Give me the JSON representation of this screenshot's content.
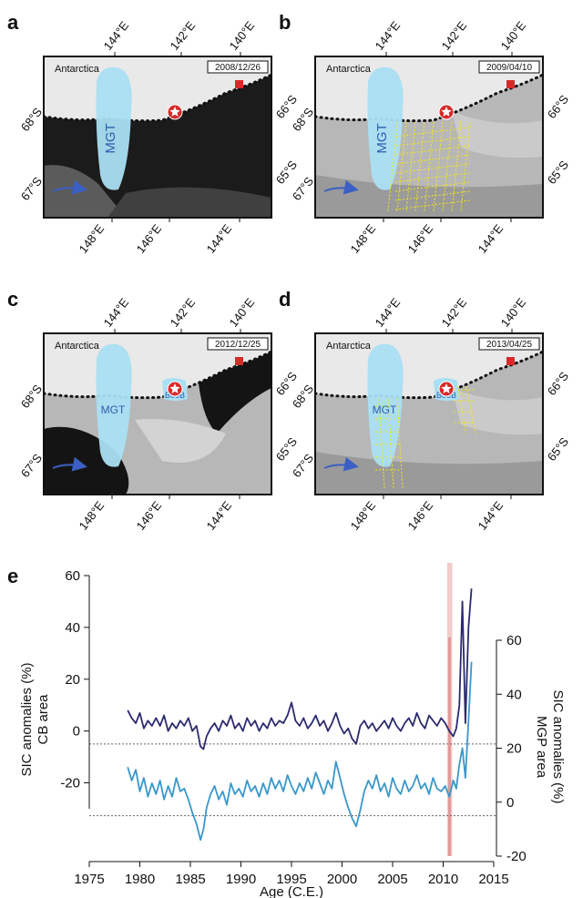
{
  "panels": [
    {
      "letter": "a",
      "date": "2008/12/26",
      "place": "Antarctica",
      "mgt": "MGT",
      "b09b": "",
      "sea": "open",
      "yellow": false,
      "top_lons": [
        "144°E",
        "142°E",
        "140°E"
      ],
      "bottom_lons": [
        "148°E",
        "146°E",
        "144°E"
      ],
      "left_lats": [
        "68°S",
        "67°S"
      ],
      "right_lats": [
        "66°S",
        "65°S"
      ]
    },
    {
      "letter": "b",
      "date": "2009/04/10",
      "place": "Antarctica",
      "mgt": "MGT",
      "b09b": "",
      "sea": "ice",
      "yellow": true,
      "top_lons": [
        "144°E",
        "142°E",
        "140°E"
      ],
      "bottom_lons": [
        "148°E",
        "146°E",
        "144°E"
      ],
      "left_lats": [
        "68°S",
        "67°S"
      ],
      "right_lats": [
        "66°S",
        "65°S"
      ]
    },
    {
      "letter": "c",
      "date": "2012/12/25",
      "place": "Antarctica",
      "mgt": "MGT",
      "b09b": "B09B",
      "sea": "mixed",
      "yellow": false,
      "top_lons": [
        "144°E",
        "142°E",
        "140°E"
      ],
      "bottom_lons": [
        "148°E",
        "146°E",
        "144°E"
      ],
      "left_lats": [
        "68°S",
        "67°S"
      ],
      "right_lats": [
        "66°S",
        "65°S"
      ]
    },
    {
      "letter": "d",
      "date": "2013/04/25",
      "place": "Antarctica",
      "mgt": "MGT",
      "b09b": "B09B",
      "sea": "ice",
      "yellow": true,
      "top_lons": [
        "144°E",
        "142°E",
        "140°E"
      ],
      "bottom_lons": [
        "148°E",
        "146°E",
        "144°E"
      ],
      "left_lats": [
        "68°S",
        "67°S"
      ],
      "right_lats": [
        "66°S",
        "65°S"
      ]
    }
  ],
  "chart_data": {
    "type": "line",
    "panel_label": "e",
    "xlabel": "Age (C.E.)",
    "xlim": [
      1975,
      2015
    ],
    "x_ticks": [
      "1975",
      "1980",
      "1985",
      "1990",
      "1995",
      "2000",
      "2005",
      "2010",
      "2015"
    ],
    "left_axis": {
      "label_line1": "SIC anomalies (%)",
      "label_line2": "CB area",
      "ylim": [
        -35,
        62
      ],
      "ticks": [
        "60",
        "40",
        "20",
        "0",
        "-20"
      ]
    },
    "right_axis": {
      "label_line1": "SIC anomalies (%)",
      "label_line2": "MGP area",
      "ylim": [
        -22,
        72
      ],
      "ticks": [
        "60",
        "40",
        "20",
        "0",
        "-20"
      ]
    },
    "shaded_interval": [
      2010.4,
      2010.9
    ],
    "reference_lines": {
      "left_axis_y": -5,
      "right_axis_y": -5
    },
    "series": [
      {
        "axis": "left",
        "color": "#2a2a6e",
        "x": [
          1978.8,
          1979.2,
          1979.6,
          1980,
          1980.4,
          1980.8,
          1981.2,
          1981.6,
          1982,
          1982.4,
          1982.8,
          1983.2,
          1983.6,
          1984,
          1984.4,
          1984.8,
          1985.2,
          1985.6,
          1986,
          1986.3,
          1986.6,
          1987,
          1987.4,
          1987.8,
          1988.2,
          1988.6,
          1989,
          1989.4,
          1989.8,
          1990.2,
          1990.6,
          1991,
          1991.4,
          1991.8,
          1992.2,
          1992.6,
          1993,
          1993.4,
          1993.8,
          1994.2,
          1994.6,
          1995,
          1995.4,
          1995.8,
          1996.2,
          1996.6,
          1997,
          1997.4,
          1997.8,
          1998.2,
          1998.6,
          1999,
          1999.4,
          1999.8,
          2000.2,
          2000.6,
          2001,
          2001.4,
          2001.8,
          2002.2,
          2002.6,
          2003,
          2003.4,
          2003.8,
          2004.2,
          2004.6,
          2005,
          2005.4,
          2005.8,
          2006.2,
          2006.6,
          2007,
          2007.4,
          2007.8,
          2008.2,
          2008.6,
          2009,
          2009.4,
          2009.8,
          2010.2,
          2010.6,
          2011,
          2011.3,
          2011.6,
          2011.9,
          2012.2,
          2012.5,
          2012.8
        ],
        "y": [
          8,
          5,
          3,
          7,
          1,
          4,
          2,
          5,
          2,
          6,
          0,
          3,
          1,
          4,
          2,
          5,
          0,
          2,
          -6,
          -7,
          -2,
          1,
          3,
          0,
          4,
          2,
          6,
          1,
          3,
          0,
          5,
          2,
          4,
          0,
          3,
          1,
          5,
          2,
          4,
          3,
          6,
          11,
          4,
          2,
          5,
          1,
          3,
          6,
          2,
          4,
          0,
          3,
          7,
          2,
          -1,
          1,
          -3,
          -5,
          2,
          4,
          1,
          3,
          0,
          2,
          4,
          1,
          5,
          2,
          0,
          3,
          5,
          2,
          7,
          3,
          1,
          6,
          4,
          2,
          5,
          3,
          0,
          -2,
          1,
          10,
          50,
          3,
          40,
          55
        ]
      },
      {
        "axis": "right",
        "color": "#3a97c9",
        "x": [
          1978.8,
          1979.2,
          1979.6,
          1980,
          1980.4,
          1980.8,
          1981.2,
          1981.6,
          1982,
          1982.4,
          1982.8,
          1983.2,
          1983.6,
          1984,
          1984.4,
          1984.8,
          1985.2,
          1985.6,
          1986,
          1986.3,
          1986.6,
          1987,
          1987.4,
          1987.8,
          1988.2,
          1988.6,
          1989,
          1989.4,
          1989.8,
          1990.2,
          1990.6,
          1991,
          1991.4,
          1991.8,
          1992.2,
          1992.6,
          1993,
          1993.4,
          1993.8,
          1994.2,
          1994.6,
          1995,
          1995.4,
          1995.8,
          1996.2,
          1996.6,
          1997,
          1997.4,
          1997.8,
          1998.2,
          1998.6,
          1999,
          1999.4,
          1999.8,
          2000.2,
          2000.6,
          2001,
          2001.4,
          2001.8,
          2002.2,
          2002.6,
          2003,
          2003.4,
          2003.8,
          2004.2,
          2004.6,
          2005,
          2005.4,
          2005.8,
          2006.2,
          2006.6,
          2007,
          2007.4,
          2007.8,
          2008.2,
          2008.6,
          2009,
          2009.4,
          2009.8,
          2010.2,
          2010.6,
          2011,
          2011.3,
          2011.6,
          2011.9,
          2012.2,
          2012.5,
          2012.8
        ],
        "y": [
          13,
          8,
          12,
          4,
          9,
          2,
          7,
          3,
          8,
          1,
          6,
          2,
          9,
          4,
          5,
          1,
          -4,
          -8,
          -14,
          -10,
          -2,
          3,
          6,
          1,
          4,
          -1,
          7,
          3,
          5,
          2,
          8,
          4,
          6,
          2,
          7,
          3,
          9,
          5,
          8,
          4,
          10,
          6,
          3,
          7,
          4,
          9,
          5,
          11,
          7,
          3,
          8,
          5,
          15,
          9,
          3,
          -2,
          -6,
          -9,
          -3,
          4,
          8,
          5,
          10,
          4,
          7,
          2,
          9,
          5,
          3,
          8,
          4,
          6,
          10,
          5,
          7,
          3,
          9,
          5,
          4,
          6,
          2,
          8,
          5,
          14,
          20,
          9,
          30,
          52
        ]
      }
    ]
  }
}
